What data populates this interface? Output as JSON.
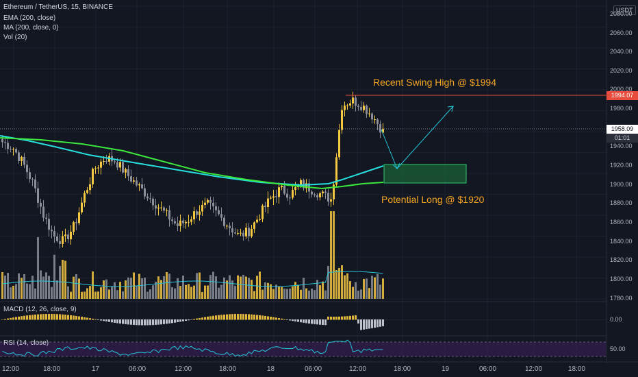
{
  "legend": {
    "symbol": "Ethereum / TetherUS, 15, BINANCE",
    "ema": "EMA (200, close)",
    "ma": "MA (200, close, 0)",
    "vol": "Vol (20)",
    "macd": "MACD (12, 26, close, 9)",
    "rsi": "RSI (14, close)"
  },
  "annotations": {
    "swing_high": "Recent Swing High @ $1994",
    "long": "Potential Long @ $1920"
  },
  "price_axis": {
    "currency_button": "USDT",
    "labels": [
      "2080.00",
      "2060.00",
      "2040.00",
      "2020.00",
      "2000.00",
      "1980.00",
      "1940.00",
      "1920.00",
      "1900.00",
      "1880.00",
      "1860.00",
      "1840.00",
      "1820.00",
      "1800.00",
      "1780.00"
    ],
    "swing_high_tag": "1994.07",
    "last_price_tag": "1958.09",
    "countdown": "01:01"
  },
  "macd_axis": {
    "label": "0.00"
  },
  "rsi_axis": {
    "label": "50.00"
  },
  "time_axis": {
    "labels": [
      "12:00",
      "18:00",
      "17",
      "06:00",
      "12:00",
      "18:00",
      "18",
      "06:00",
      "12:00",
      "18:00",
      "19",
      "06:00",
      "12:00",
      "18:00"
    ]
  },
  "colors": {
    "background": "#131722",
    "up_candle": "#f5c842",
    "down_candle": "#8c8f99",
    "ema": "#26e0e0",
    "ma": "#3be83b",
    "swing_line": "#e74c3c",
    "annotation": "#f5a623",
    "rsi_band": "#3c1f5c"
  },
  "chart_data": {
    "type": "candlestick",
    "description_values": {
      "swing_high": 1994.07,
      "last_price": 1958.09,
      "long_zone": [
        1902,
        1922
      ],
      "price_range": [
        1780,
        2090
      ]
    },
    "price_path": [
      1950,
      1945,
      1930,
      1910,
      1880,
      1860,
      1855,
      1870,
      1900,
      1925,
      1935,
      1932,
      1920,
      1910,
      1900,
      1890,
      1880,
      1870,
      1875,
      1885,
      1890,
      1880,
      1870,
      1860,
      1865,
      1880,
      1895,
      1905,
      1900,
      1910,
      1905,
      1900,
      1895,
      1985,
      1990,
      1985,
      1975,
      1960
    ]
  }
}
